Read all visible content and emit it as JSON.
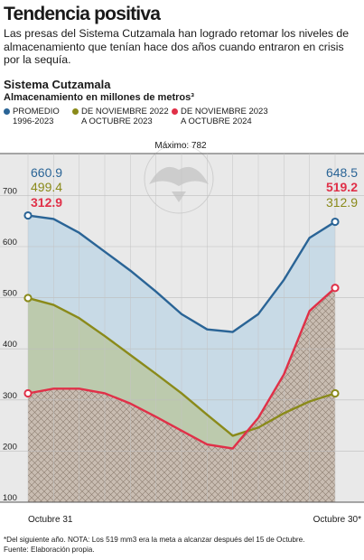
{
  "headline": "Tendencia positiva",
  "subtitle": "Las presas del Sistema Cutzamala han logrado retomar los niveles de almacenamiento que tenían hace dos años cuando entraron en crisis por la sequía.",
  "section_title": "Sistema Cutzamala",
  "legend": [
    {
      "label": "PROMEDIO\n1996-2023",
      "color": "#2a6496"
    },
    {
      "label": "DE NOVIEMBRE 2022\nA OCTUBRE 2023",
      "color": "#8a8a1a"
    },
    {
      "label": "DE NOVIEMBRE 2023\nA OCTUBRE 2024",
      "color": "#e03048"
    }
  ],
  "footnote": {
    "line1": "*Del siguiente año. NOTA: Los 519 mm3 era la meta a alcanzar después del 15 de Octubre.",
    "line2": "Fuente: Elaboración propia."
  },
  "chart_data": {
    "type": "line",
    "ylabel": "Almacenamiento en millones de metros³",
    "max_label": "Máximo: 782",
    "ylim": [
      100,
      782
    ],
    "yticks": [
      100,
      200,
      300,
      400,
      500,
      600,
      700
    ],
    "x_labels": [
      "Octubre 31",
      "Octubre 30*"
    ],
    "n_points": 13,
    "grid": true,
    "series": [
      {
        "name": "PROMEDIO 1996-2023",
        "color": "#2a6496",
        "fill": "#c6d9e6",
        "values": [
          660.9,
          654,
          627,
          590,
          553,
          512,
          468,
          438,
          433,
          468,
          535,
          617,
          648.5
        ],
        "start_label": "660.9",
        "end_label": "648.5"
      },
      {
        "name": "DE NOVIEMBRE 2022 A OCTUBRE 2023",
        "color": "#8a8a1a",
        "fill": "#bcc9aa",
        "values": [
          499.4,
          486,
          460,
          425,
          388,
          351,
          313,
          271,
          230,
          246,
          274,
          297,
          312.9
        ],
        "start_label": "499.4",
        "end_label": "312.9"
      },
      {
        "name": "DE NOVIEMBRE 2023 A OCTUBRE 2024",
        "color": "#e03048",
        "fill": "#cbbcb0",
        "values": [
          312.9,
          322,
          322,
          313,
          293,
          267,
          240,
          213,
          205,
          265,
          350,
          474,
          519.2
        ],
        "start_label": "312.9",
        "end_label": "519.2"
      }
    ]
  }
}
